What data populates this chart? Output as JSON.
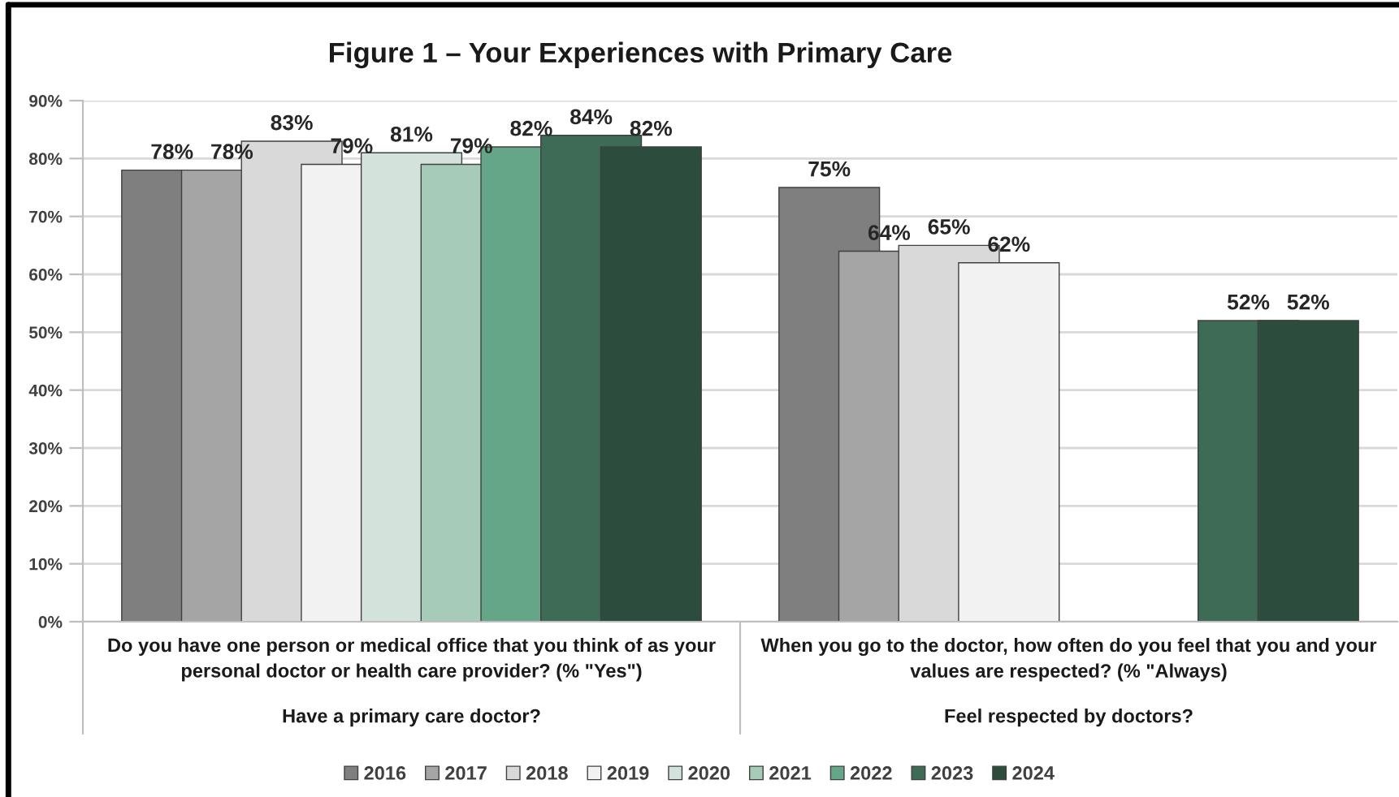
{
  "chart_data": {
    "type": "bar",
    "title": "Figure 1 – Your Experiences with Primary Care",
    "categories": [
      "Do you have one person or medical office that you think of as your personal doctor or health care provider? (% \"Yes\")",
      "When you go to the doctor, how often do you feel that you and your values are respected? (% \"Always)"
    ],
    "annotations": [
      "Have a primary care doctor?",
      "Feel respected by doctors?"
    ],
    "series": [
      {
        "name": "2016",
        "color": "#7f7f7f",
        "values": [
          78,
          75
        ],
        "value_labels": [
          "78%",
          "75%"
        ]
      },
      {
        "name": "2017",
        "color": "#a5a5a5",
        "values": [
          78,
          64
        ],
        "value_labels": [
          "78%",
          "64%"
        ]
      },
      {
        "name": "2018",
        "color": "#d9d9d9",
        "values": [
          83,
          65
        ],
        "value_labels": [
          "83%",
          "65%"
        ]
      },
      {
        "name": "2019",
        "color": "#f2f2f2",
        "values": [
          79,
          62
        ],
        "value_labels": [
          "79%",
          "62%"
        ]
      },
      {
        "name": "2020",
        "color": "#d3e3dc",
        "values": [
          81,
          null
        ],
        "value_labels": [
          "81%",
          null
        ]
      },
      {
        "name": "2021",
        "color": "#a6cbb9",
        "values": [
          79,
          null
        ],
        "value_labels": [
          "79%",
          null
        ]
      },
      {
        "name": "2022",
        "color": "#66a688",
        "values": [
          82,
          null
        ],
        "value_labels": [
          "82%",
          null
        ]
      },
      {
        "name": "2023",
        "color": "#3d6b55",
        "values": [
          84,
          52
        ],
        "value_labels": [
          "84%",
          "52%"
        ]
      },
      {
        "name": "2024",
        "color": "#2c4d3d",
        "values": [
          82,
          52
        ],
        "value_labels": [
          "82%",
          "52%"
        ]
      }
    ],
    "ylim": [
      0,
      90
    ],
    "yticks": [
      {
        "value": 0,
        "label": "0%"
      },
      {
        "value": 10,
        "label": "10%"
      },
      {
        "value": 20,
        "label": "20%"
      },
      {
        "value": 30,
        "label": "30%"
      },
      {
        "value": 40,
        "label": "40%"
      },
      {
        "value": 50,
        "label": "50%"
      },
      {
        "value": 60,
        "label": "60%"
      },
      {
        "value": 70,
        "label": "70%"
      },
      {
        "value": 80,
        "label": "80%"
      },
      {
        "value": 90,
        "label": "90%"
      }
    ],
    "grid": "y",
    "legend": "bottom"
  }
}
